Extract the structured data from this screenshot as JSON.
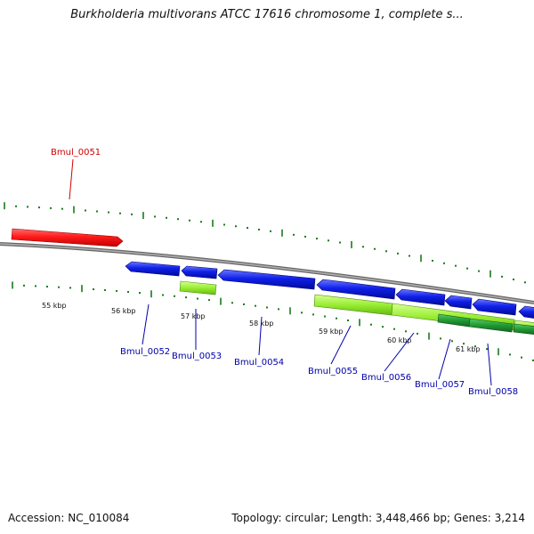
{
  "title": "Burkholderia multivorans ATCC 17616 chromosome 1, complete s...",
  "footer": {
    "accession": "Accession: NC_010084",
    "stats": "Topology: circular; Length: 3,448,466 bp; Genes: 3,214"
  },
  "colors": {
    "forward_gene": "#ee1111",
    "reverse_gene": "#0a14e6",
    "feature_light_green": "#99ee33",
    "feature_dark_green": "#229933",
    "backbone": "#8a8a8a",
    "ticks": "#1b7a1b",
    "label_red": "#cc0000",
    "label_blue": "#0000aa"
  },
  "scale_labels": [
    "55 kbp",
    "56 kbp",
    "57 kbp",
    "58 kbp",
    "59 kbp",
    "60 kbp",
    "61 kbp"
  ],
  "gene_labels": [
    {
      "name": "Bmul_0051",
      "strand": "forward"
    },
    {
      "name": "Bmul_0052",
      "strand": "reverse"
    },
    {
      "name": "Bmul_0053",
      "strand": "reverse"
    },
    {
      "name": "Bmul_0054",
      "strand": "reverse"
    },
    {
      "name": "Bmul_0055",
      "strand": "reverse"
    },
    {
      "name": "Bmul_0056",
      "strand": "reverse"
    },
    {
      "name": "Bmul_0057",
      "strand": "reverse"
    },
    {
      "name": "Bmul_0058",
      "strand": "reverse"
    }
  ]
}
